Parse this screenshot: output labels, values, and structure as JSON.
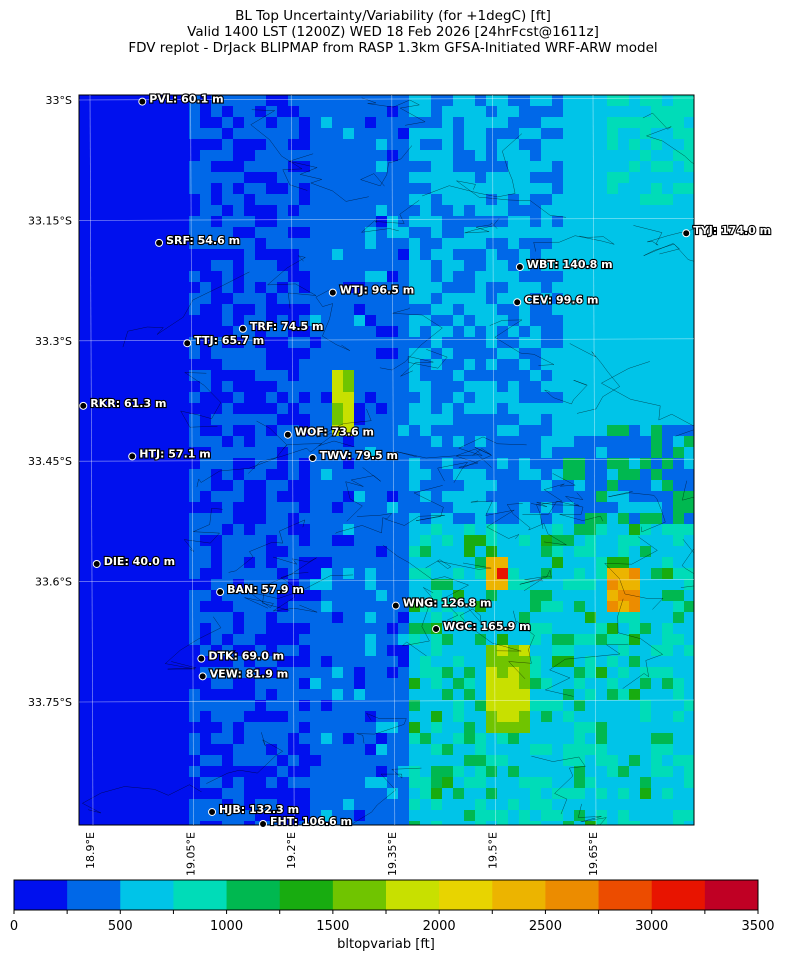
{
  "title": {
    "line1": "BL Top Uncertainty/Variability (for +1degC) [ft]",
    "line2": "Valid 1400 LST (1200Z) WED 18 Feb 2026 [24hrFcst@1611z]",
    "line3": "FDV replot - DrJack BLIPMAP from RASP 1.3km GFSA-Initiated WRF-ARW model"
  },
  "chart_data": {
    "type": "heatmap",
    "lat_ticks": [
      "33°S",
      "33.15°S",
      "33.3°S",
      "33.45°S",
      "33.6°S",
      "33.75°S"
    ],
    "lon_ticks": [
      "18.9°E",
      "19.05°E",
      "19.2°E",
      "19.35°E",
      "19.5°E",
      "19.65°E"
    ],
    "colorbar": {
      "label": "bltopvariab [ft]",
      "ticks": [
        "0",
        "500",
        "1000",
        "1500",
        "2000",
        "2500",
        "3000",
        "3500"
      ],
      "bounds": [
        0,
        250,
        500,
        750,
        1000,
        1250,
        1500,
        1750,
        2000,
        2250,
        2500,
        2750,
        3000,
        3250,
        3500
      ],
      "colors": [
        "#0010ee",
        "#0068e8",
        "#00c4e8",
        "#00dcb8",
        "#00b850",
        "#18ac10",
        "#70c400",
        "#c8e000",
        "#e8d400",
        "#ecb400",
        "#ec8c00",
        "#ec4c00",
        "#e81400",
        "#c00024"
      ]
    },
    "stations": [
      {
        "label": "PVL: 60.1 m",
        "lon": 18.978,
        "lat": -33.002
      },
      {
        "label": "SRF: 54.6 m",
        "lon": 19.003,
        "lat": -33.178
      },
      {
        "label": "WTJ: 96.5 m",
        "lon": 19.262,
        "lat": -33.24
      },
      {
        "label": "TRF: 74.5 m",
        "lon": 19.128,
        "lat": -33.285
      },
      {
        "label": "TTJ: 65.7 m",
        "lon": 19.045,
        "lat": -33.303
      },
      {
        "label": "WBT: 140.8 m",
        "lon": 19.541,
        "lat": -33.208
      },
      {
        "label": "CEV: 99.6 m",
        "lon": 19.537,
        "lat": -33.252
      },
      {
        "label": "TYJ: 174.0 m",
        "lon": 19.789,
        "lat": -33.166
      },
      {
        "label": "RKR: 61.3 m",
        "lon": 18.89,
        "lat": -33.381
      },
      {
        "label": "WOF: 73.6 m",
        "lon": 19.195,
        "lat": -33.417
      },
      {
        "label": "TWV: 79.5 m",
        "lon": 19.232,
        "lat": -33.446
      },
      {
        "label": "HTJ: 57.1 m",
        "lon": 18.963,
        "lat": -33.444
      },
      {
        "label": "DIE: 40.0 m",
        "lon": 18.91,
        "lat": -33.578
      },
      {
        "label": "BAN: 57.9 m",
        "lon": 19.094,
        "lat": -33.613
      },
      {
        "label": "WNG: 126.8 m",
        "lon": 19.356,
        "lat": -33.63
      },
      {
        "label": "WGC: 165.9 m",
        "lon": 19.416,
        "lat": -33.659
      },
      {
        "label": "DTK: 69.0 m",
        "lon": 19.066,
        "lat": -33.696
      },
      {
        "label": "VEW: 81.9 m",
        "lon": 19.068,
        "lat": -33.718
      },
      {
        "label": "HJB: 132.3 m",
        "lon": 19.082,
        "lat": -33.887
      },
      {
        "label": "FHT: 106.6 m",
        "lon": 19.158,
        "lat": -33.902
      }
    ]
  }
}
